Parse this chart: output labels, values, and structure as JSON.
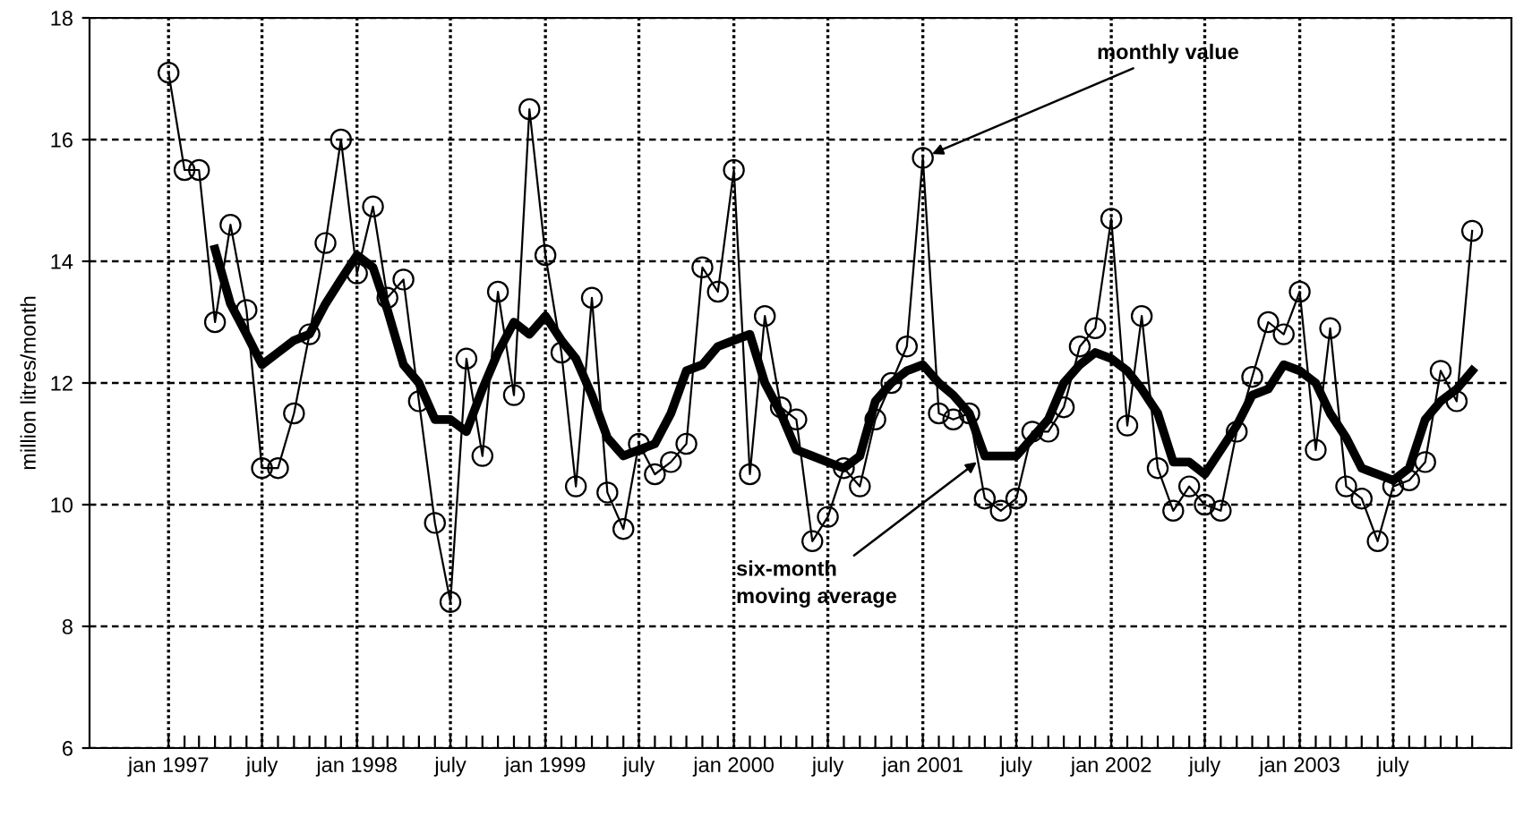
{
  "chart_data": {
    "type": "line",
    "ylabel": "million litres/month",
    "x": [
      "1997-01",
      "1997-02",
      "1997-03",
      "1997-04",
      "1997-05",
      "1997-06",
      "1997-07",
      "1997-08",
      "1997-09",
      "1997-10",
      "1997-11",
      "1997-12",
      "1998-01",
      "1998-02",
      "1998-03",
      "1998-04",
      "1998-05",
      "1998-06",
      "1998-07",
      "1998-08",
      "1998-09",
      "1998-10",
      "1998-11",
      "1998-12",
      "1999-01",
      "1999-02",
      "1999-03",
      "1999-04",
      "1999-05",
      "1999-06",
      "1999-07",
      "1999-08",
      "1999-09",
      "1999-10",
      "1999-11",
      "1999-12",
      "2000-01",
      "2000-02",
      "2000-03",
      "2000-04",
      "2000-05",
      "2000-06",
      "2000-07",
      "2000-08",
      "2000-09",
      "2000-10",
      "2000-11",
      "2000-12",
      "2001-01",
      "2001-02",
      "2001-03",
      "2001-04",
      "2001-05",
      "2001-06",
      "2001-07",
      "2001-08",
      "2001-09",
      "2001-10",
      "2001-11",
      "2001-12",
      "2002-01",
      "2002-02",
      "2002-03",
      "2002-04",
      "2002-05",
      "2002-06",
      "2002-07",
      "2002-08",
      "2002-09",
      "2002-10",
      "2002-11",
      "2002-12",
      "2003-01",
      "2003-02",
      "2003-03",
      "2003-04",
      "2003-05",
      "2003-06",
      "2003-07",
      "2003-08",
      "2003-09",
      "2003-10",
      "2003-11",
      "2003-12"
    ],
    "series": [
      {
        "color": "#000000",
        "marker": "circle",
        "values": [
          17.1,
          15.5,
          15.5,
          13.0,
          14.6,
          13.2,
          10.6,
          10.6,
          11.5,
          12.8,
          14.3,
          16.0,
          13.8,
          14.9,
          13.4,
          13.7,
          11.7,
          9.7,
          8.4,
          12.4,
          10.8,
          13.5,
          11.8,
          16.5,
          14.1,
          12.5,
          10.3,
          13.4,
          10.2,
          9.6,
          11.0,
          10.5,
          10.7,
          11.0,
          13.9,
          13.5,
          15.5,
          10.5,
          13.1,
          11.6,
          11.4,
          9.4,
          9.8,
          10.6,
          10.3,
          11.4,
          12.0,
          12.6,
          15.7,
          11.5,
          11.4,
          11.5,
          10.1,
          9.9,
          10.1,
          11.2,
          11.2,
          11.6,
          12.6,
          12.9,
          14.7,
          11.3,
          13.1,
          10.6,
          9.9,
          10.3,
          10.0,
          9.9,
          11.2,
          12.1,
          13.0,
          12.8,
          13.5,
          10.9,
          12.9,
          10.3,
          10.1,
          9.4,
          10.3,
          10.4,
          10.7,
          12.2,
          11.7,
          14.5
        ]
      },
      {
        "color": "#000000",
        "marker": "none",
        "values": [
          null,
          null,
          null,
          14.2,
          13.3,
          12.8,
          12.3,
          12.5,
          12.7,
          12.8,
          13.3,
          13.7,
          14.1,
          13.9,
          13.2,
          12.3,
          12.0,
          11.4,
          11.4,
          11.2,
          11.9,
          12.5,
          13.0,
          12.8,
          13.1,
          12.7,
          12.4,
          11.8,
          11.1,
          10.8,
          10.9,
          11.0,
          11.5,
          12.2,
          12.3,
          12.6,
          12.7,
          12.8,
          12.0,
          11.5,
          10.9,
          10.8,
          10.7,
          10.6,
          10.8,
          11.7,
          12.0,
          12.2,
          12.3,
          12.0,
          11.8,
          11.5,
          10.8,
          10.8,
          10.8,
          11.1,
          11.4,
          12.0,
          12.3,
          12.5,
          12.4,
          12.2,
          11.9,
          11.5,
          10.7,
          10.7,
          10.5,
          10.9,
          11.3,
          11.8,
          11.9,
          12.3,
          12.2,
          12.0,
          11.5,
          11.1,
          10.6,
          10.5,
          10.4,
          10.6,
          11.4,
          11.7,
          11.9,
          12.2
        ]
      }
    ],
    "annotations": [
      {
        "text": "monthly value",
        "x": "2001-01",
        "y": 15.7
      },
      {
        "text": "six-month\nmoving average",
        "x": "2001-05",
        "y": 10.8
      }
    ],
    "ylim": [
      6,
      18
    ],
    "yticks": [
      6,
      8,
      10,
      12,
      14,
      16,
      18
    ],
    "xlim": [
      "1996-08-01",
      "2004-02-15"
    ],
    "xticks": [
      {
        "value": "1997-01",
        "label": "jan 1997"
      },
      {
        "value": "1997-02",
        "label": null
      },
      {
        "value": "1997-03",
        "label": null
      },
      {
        "value": "1997-04",
        "label": null
      },
      {
        "value": "1997-05",
        "label": null
      },
      {
        "value": "1997-06",
        "label": null
      },
      {
        "value": "1997-07",
        "label": "july"
      },
      {
        "value": "1997-08",
        "label": null
      },
      {
        "value": "1997-09",
        "label": null
      },
      {
        "value": "1997-10",
        "label": null
      },
      {
        "value": "1997-11",
        "label": null
      },
      {
        "value": "1997-12",
        "label": null
      },
      {
        "value": "1998-01",
        "label": "jan 1998"
      },
      {
        "value": "1998-02",
        "label": null
      },
      {
        "value": "1998-03",
        "label": null
      },
      {
        "value": "1998-04",
        "label": null
      },
      {
        "value": "1998-05",
        "label": null
      },
      {
        "value": "1998-06",
        "label": null
      },
      {
        "value": "1998-07",
        "label": "july"
      },
      {
        "value": "1998-08",
        "label": null
      },
      {
        "value": "1998-09",
        "label": null
      },
      {
        "value": "1998-10",
        "label": null
      },
      {
        "value": "1998-11",
        "label": null
      },
      {
        "value": "1998-12",
        "label": null
      },
      {
        "value": "1999-01",
        "label": "jan 1999"
      },
      {
        "value": "1999-02",
        "label": null
      },
      {
        "value": "1999-03",
        "label": null
      },
      {
        "value": "1999-04",
        "label": null
      },
      {
        "value": "1999-05",
        "label": null
      },
      {
        "value": "1999-06",
        "label": null
      },
      {
        "value": "1999-07",
        "label": "july"
      },
      {
        "value": "1999-08",
        "label": null
      },
      {
        "value": "1999-09",
        "label": null
      },
      {
        "value": "1999-10",
        "label": null
      },
      {
        "value": "1999-11",
        "label": null
      },
      {
        "value": "1999-12",
        "label": null
      },
      {
        "value": "2000-01",
        "label": "jan 2000"
      },
      {
        "value": "2000-02",
        "label": null
      },
      {
        "value": "2000-03",
        "label": null
      },
      {
        "value": "2000-04",
        "label": null
      },
      {
        "value": "2000-05",
        "label": null
      },
      {
        "value": "2000-06",
        "label": null
      },
      {
        "value": "2000-07",
        "label": "july"
      },
      {
        "value": "2000-08",
        "label": null
      },
      {
        "value": "2000-09",
        "label": null
      },
      {
        "value": "2000-10",
        "label": null
      },
      {
        "value": "2000-11",
        "label": null
      },
      {
        "value": "2000-12",
        "label": null
      },
      {
        "value": "2001-01",
        "label": "jan 2001"
      },
      {
        "value": "2001-02",
        "label": null
      },
      {
        "value": "2001-03",
        "label": null
      },
      {
        "value": "2001-04",
        "label": null
      },
      {
        "value": "2001-05",
        "label": null
      },
      {
        "value": "2001-06",
        "label": null
      },
      {
        "value": "2001-07",
        "label": "july"
      },
      {
        "value": "2001-08",
        "label": null
      },
      {
        "value": "2001-09",
        "label": null
      },
      {
        "value": "2001-10",
        "label": null
      },
      {
        "value": "2001-11",
        "label": null
      },
      {
        "value": "2001-12",
        "label": null
      },
      {
        "value": "2002-01",
        "label": "jan 2002"
      },
      {
        "value": "2002-02",
        "label": null
      },
      {
        "value": "2002-03",
        "label": null
      },
      {
        "value": "2002-04",
        "label": null
      },
      {
        "value": "2002-05",
        "label": null
      },
      {
        "value": "2002-06",
        "label": null
      },
      {
        "value": "2002-07",
        "label": "july"
      },
      {
        "value": "2002-08",
        "label": null
      },
      {
        "value": "2002-09",
        "label": null
      },
      {
        "value": "2002-10",
        "label": null
      },
      {
        "value": "2002-11",
        "label": null
      },
      {
        "value": "2002-12",
        "label": null
      },
      {
        "value": "2003-01",
        "label": "jan 2003"
      },
      {
        "value": "2003-02",
        "label": null
      },
      {
        "value": "2003-03",
        "label": null
      },
      {
        "value": "2003-04",
        "label": null
      },
      {
        "value": "2003-05",
        "label": null
      },
      {
        "value": "2003-06",
        "label": null
      },
      {
        "value": "2003-07",
        "label": "july"
      },
      {
        "value": "2003-08",
        "label": null
      },
      {
        "value": "2003-09",
        "label": null
      },
      {
        "value": "2003-10",
        "label": null
      },
      {
        "value": "2003-11",
        "label": null
      },
      {
        "value": "2003-12",
        "label": null
      }
    ],
    "grid": true,
    "legend": false
  }
}
